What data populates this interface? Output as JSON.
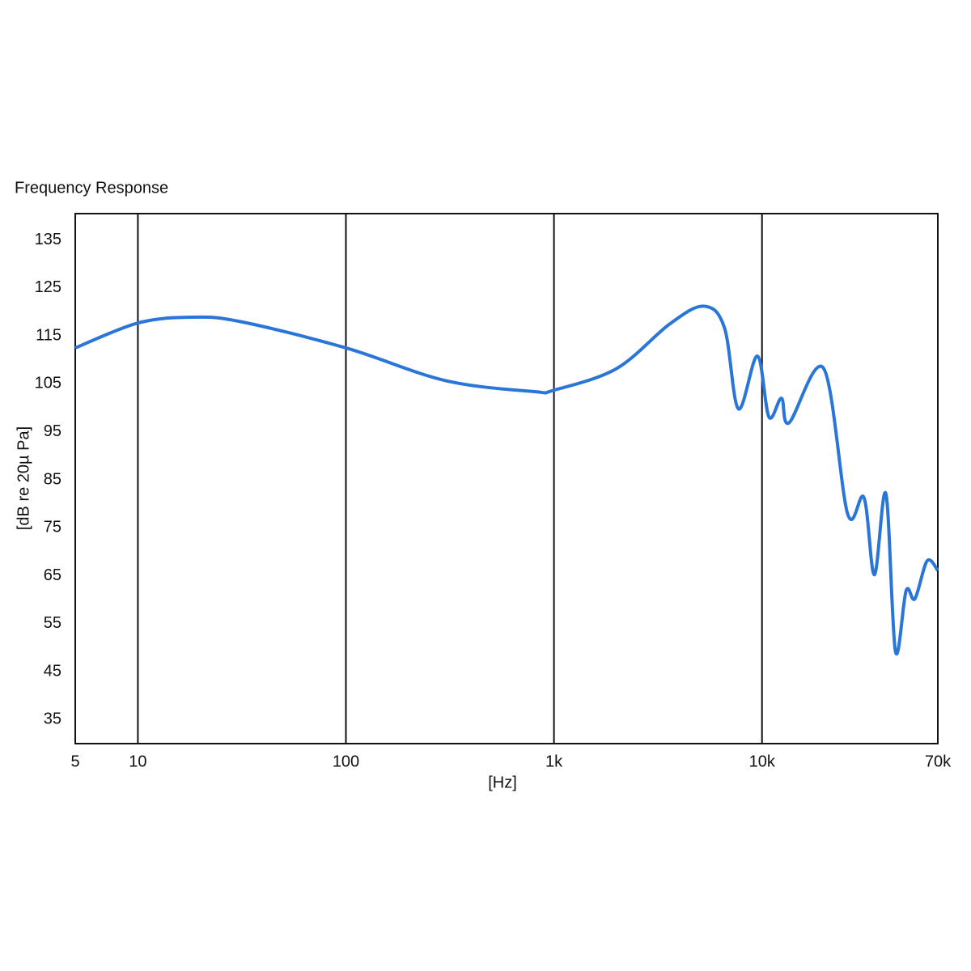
{
  "chart_data": {
    "type": "line",
    "title": "Frequency Response",
    "x_label": "[Hz]",
    "y_label": "[dB re 20µ Pa]",
    "x_scale": "log",
    "grid": "x",
    "xlim": [
      5,
      70000
    ],
    "xticks": [
      5,
      10,
      100,
      {
        "value": 1000,
        "label": "1k"
      },
      {
        "value": 10000,
        "label": "10k"
      },
      {
        "value": 70000,
        "label": "70k"
      }
    ],
    "ylim": [
      30,
      140.5
    ],
    "yticks": [
      35,
      45,
      55,
      65,
      75,
      85,
      95,
      105,
      115,
      125,
      135
    ],
    "series": [
      {
        "color": "#2a76d8",
        "x": [
          5,
          10,
          18,
          31,
          100,
          300,
          800,
          1000,
          2000,
          3600,
          5250,
          6600,
          7700,
          9500,
          10800,
          12400,
          13500,
          19800,
          25800,
          30900,
          34700,
          39400,
          43800,
          49300,
          54300,
          62200,
          70000
        ],
        "values": [
          112.5,
          117.7,
          118.9,
          118,
          112.5,
          105.7,
          103.4,
          103.7,
          108.2,
          117.5,
          121.2,
          116.7,
          99.8,
          110.8,
          98.1,
          102,
          96.9,
          108.2,
          77.9,
          81.3,
          65.2,
          82.1,
          49.2,
          61.9,
          60.2,
          68.1,
          66.1
        ]
      }
    ]
  }
}
